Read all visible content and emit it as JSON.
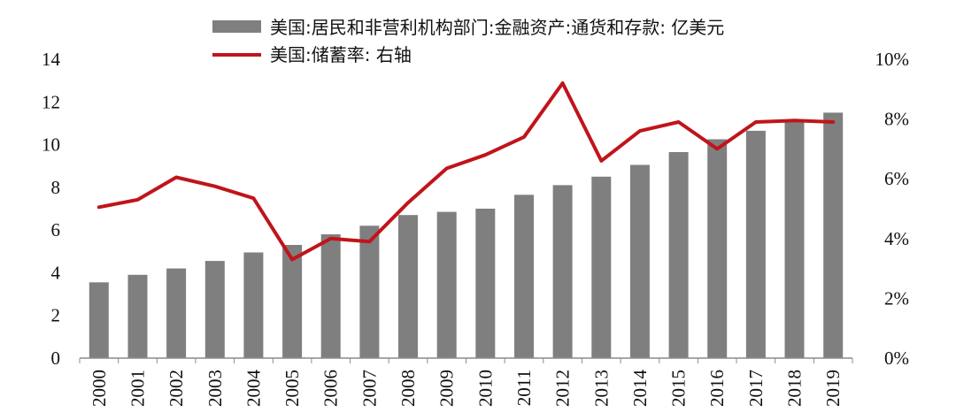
{
  "chart_data": {
    "type": "bar",
    "categories": [
      "2000",
      "2001",
      "2002",
      "2003",
      "2004",
      "2005",
      "2006",
      "2007",
      "2008",
      "2009",
      "2010",
      "2011",
      "2012",
      "2013",
      "2014",
      "2015",
      "2016",
      "2017",
      "2018",
      "2019"
    ],
    "series": [
      {
        "name": "美国:居民和非营利机构部门:金融资产:通货和存款: 亿美元",
        "type": "bar",
        "axis": "left",
        "color": "#7f7f7f",
        "values": [
          3.55,
          3.9,
          4.2,
          4.55,
          4.95,
          5.3,
          5.8,
          6.2,
          6.7,
          6.85,
          7.0,
          7.65,
          8.1,
          8.5,
          9.05,
          9.65,
          10.25,
          10.65,
          11.1,
          11.5
        ]
      },
      {
        "name": "美国:储蓄率: 右轴",
        "type": "line",
        "axis": "right",
        "color": "#c0141b",
        "values": [
          5.05,
          5.3,
          6.05,
          5.75,
          5.35,
          3.3,
          4.0,
          3.9,
          5.2,
          6.35,
          6.8,
          7.4,
          9.2,
          6.6,
          7.6,
          7.9,
          7.0,
          7.9,
          7.95,
          7.9
        ]
      }
    ],
    "left_axis": {
      "ylim": [
        0,
        14
      ],
      "ticks": [
        "0",
        "2",
        "4",
        "6",
        "8",
        "10",
        "12",
        "14"
      ]
    },
    "right_axis": {
      "ylim": [
        0,
        10
      ],
      "ticks": [
        "0%",
        "2%",
        "4%",
        "6%",
        "8%",
        "10%"
      ]
    },
    "legend_position": "top-center",
    "grid": false
  }
}
